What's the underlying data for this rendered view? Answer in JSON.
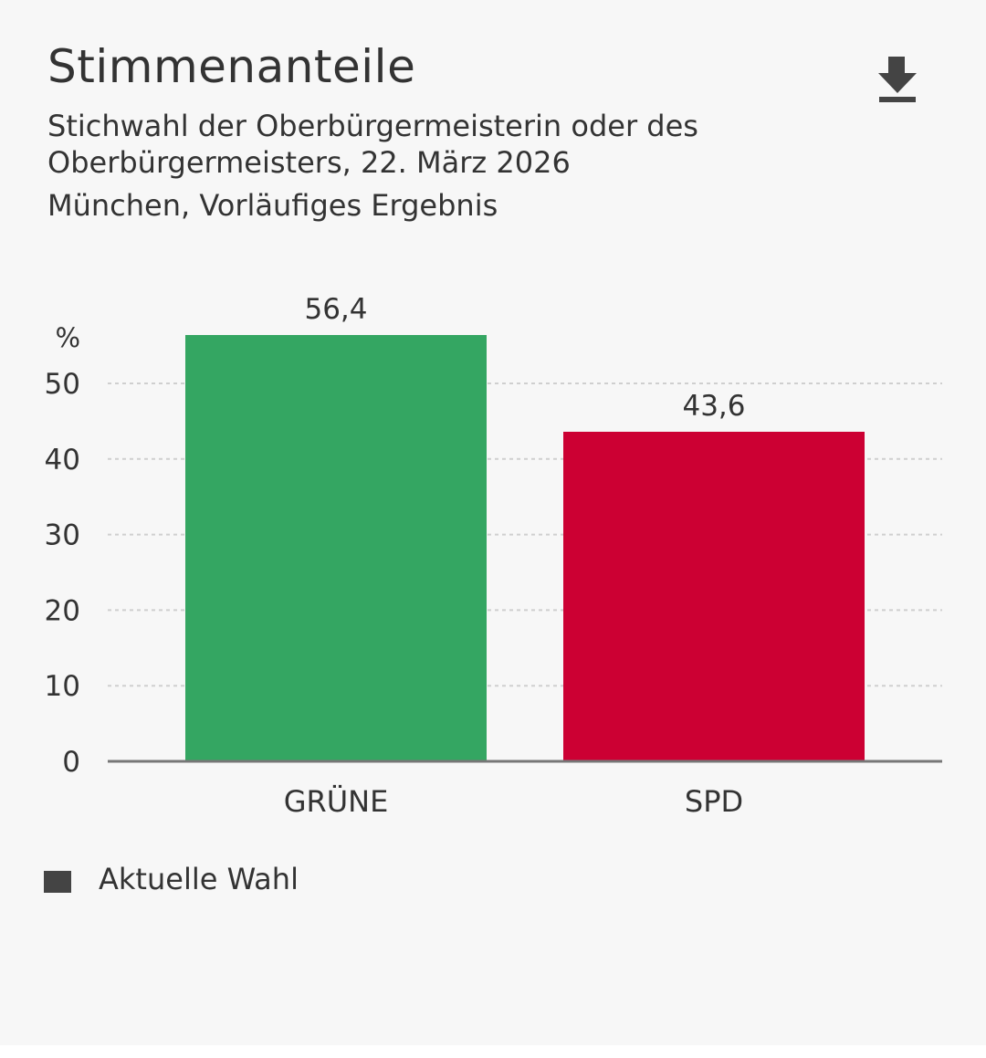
{
  "header": {
    "title": "Stimmenanteile",
    "subtitle": "Stichwahl der Oberbürgermeisterin oder des Oberbürgermeisters, 22. März 2026",
    "location": "München, Vorläufiges Ergebnis",
    "download_icon": "download-icon"
  },
  "legend": {
    "label": "Aktuelle Wahl",
    "color": "#444444"
  },
  "chart_data": {
    "type": "bar",
    "title": "Stimmenanteile",
    "categories": [
      "GRÜNE",
      "SPD"
    ],
    "values": [
      56.4,
      43.6
    ],
    "value_labels": [
      "56,4",
      "43,6"
    ],
    "colors": [
      "#34a662",
      "#cc0033"
    ],
    "ylabel": "%",
    "xlabel": "",
    "ylim": [
      0,
      56.4
    ],
    "yticks": [
      0,
      10,
      20,
      30,
      40,
      50
    ],
    "grid": true,
    "legend_position": "bottom-left"
  }
}
